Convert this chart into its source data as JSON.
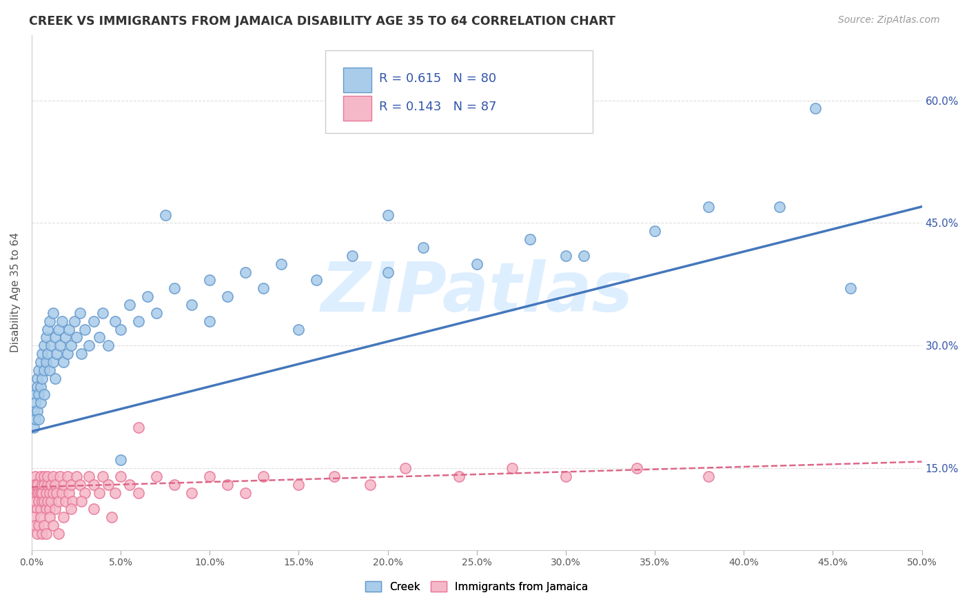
{
  "title": "CREEK VS IMMIGRANTS FROM JAMAICA DISABILITY AGE 35 TO 64 CORRELATION CHART",
  "source": "Source: ZipAtlas.com",
  "xlabel_ticks": [
    "0.0%",
    "5.0%",
    "10.0%",
    "15.0%",
    "20.0%",
    "25.0%",
    "30.0%",
    "35.0%",
    "40.0%",
    "45.0%",
    "50.0%"
  ],
  "ylabel_ticks": [
    "15.0%",
    "30.0%",
    "45.0%",
    "60.0%"
  ],
  "ylabel_label": "Disability Age 35 to 64",
  "xlim": [
    0.0,
    0.5
  ],
  "ylim": [
    0.05,
    0.68
  ],
  "yticks": [
    0.15,
    0.3,
    0.45,
    0.6
  ],
  "xticks": [
    0.0,
    0.05,
    0.1,
    0.15,
    0.2,
    0.25,
    0.3,
    0.35,
    0.4,
    0.45,
    0.5
  ],
  "creek_R": 0.615,
  "creek_N": 80,
  "jamaica_R": 0.143,
  "jamaica_N": 87,
  "creek_color": "#A8CCEA",
  "jamaica_color": "#F5B8C8",
  "creek_edge_color": "#6699CC",
  "jamaica_edge_color": "#E87899",
  "creek_line_color": "#4477BB",
  "jamaica_line_color": "#DD6688",
  "watermark_text": "ZIPatlas",
  "watermark_color": "#DDEEFF",
  "background_color": "#FFFFFF",
  "grid_color": "#DDDDDD",
  "title_color": "#333333",
  "source_color": "#999999",
  "legend_color": "#3355AA",
  "creek_scatter_x": [
    0.001,
    0.001,
    0.002,
    0.002,
    0.002,
    0.003,
    0.003,
    0.003,
    0.004,
    0.004,
    0.004,
    0.005,
    0.005,
    0.005,
    0.006,
    0.006,
    0.007,
    0.007,
    0.007,
    0.008,
    0.008,
    0.009,
    0.009,
    0.01,
    0.01,
    0.011,
    0.012,
    0.012,
    0.013,
    0.013,
    0.014,
    0.015,
    0.016,
    0.017,
    0.018,
    0.019,
    0.02,
    0.021,
    0.022,
    0.024,
    0.025,
    0.027,
    0.028,
    0.03,
    0.032,
    0.035,
    0.038,
    0.04,
    0.043,
    0.047,
    0.05,
    0.055,
    0.06,
    0.065,
    0.07,
    0.08,
    0.09,
    0.1,
    0.11,
    0.12,
    0.13,
    0.14,
    0.16,
    0.18,
    0.2,
    0.22,
    0.25,
    0.28,
    0.31,
    0.35,
    0.38,
    0.42,
    0.46,
    0.05,
    0.075,
    0.1,
    0.15,
    0.2,
    0.3,
    0.44
  ],
  "creek_scatter_y": [
    0.22,
    0.2,
    0.24,
    0.21,
    0.23,
    0.26,
    0.22,
    0.25,
    0.27,
    0.24,
    0.21,
    0.28,
    0.25,
    0.23,
    0.29,
    0.26,
    0.3,
    0.27,
    0.24,
    0.31,
    0.28,
    0.32,
    0.29,
    0.33,
    0.27,
    0.3,
    0.34,
    0.28,
    0.31,
    0.26,
    0.29,
    0.32,
    0.3,
    0.33,
    0.28,
    0.31,
    0.29,
    0.32,
    0.3,
    0.33,
    0.31,
    0.34,
    0.29,
    0.32,
    0.3,
    0.33,
    0.31,
    0.34,
    0.3,
    0.33,
    0.32,
    0.35,
    0.33,
    0.36,
    0.34,
    0.37,
    0.35,
    0.38,
    0.36,
    0.39,
    0.37,
    0.4,
    0.38,
    0.41,
    0.39,
    0.42,
    0.4,
    0.43,
    0.41,
    0.44,
    0.47,
    0.47,
    0.37,
    0.16,
    0.46,
    0.33,
    0.32,
    0.46,
    0.41,
    0.59
  ],
  "jamaica_scatter_x": [
    0.001,
    0.001,
    0.002,
    0.002,
    0.002,
    0.003,
    0.003,
    0.003,
    0.004,
    0.004,
    0.005,
    0.005,
    0.005,
    0.006,
    0.006,
    0.006,
    0.007,
    0.007,
    0.007,
    0.008,
    0.008,
    0.009,
    0.009,
    0.009,
    0.01,
    0.01,
    0.011,
    0.011,
    0.012,
    0.012,
    0.013,
    0.013,
    0.014,
    0.015,
    0.016,
    0.017,
    0.018,
    0.019,
    0.02,
    0.021,
    0.022,
    0.023,
    0.025,
    0.027,
    0.03,
    0.032,
    0.035,
    0.038,
    0.04,
    0.043,
    0.047,
    0.05,
    0.055,
    0.06,
    0.07,
    0.08,
    0.09,
    0.1,
    0.11,
    0.12,
    0.13,
    0.15,
    0.17,
    0.19,
    0.21,
    0.24,
    0.27,
    0.3,
    0.34,
    0.38,
    0.001,
    0.002,
    0.003,
    0.004,
    0.005,
    0.006,
    0.007,
    0.008,
    0.01,
    0.012,
    0.015,
    0.018,
    0.022,
    0.028,
    0.035,
    0.045,
    0.06
  ],
  "jamaica_scatter_y": [
    0.13,
    0.12,
    0.14,
    0.11,
    0.13,
    0.12,
    0.1,
    0.13,
    0.12,
    0.11,
    0.14,
    0.12,
    0.1,
    0.13,
    0.11,
    0.12,
    0.14,
    0.11,
    0.13,
    0.12,
    0.1,
    0.13,
    0.11,
    0.14,
    0.12,
    0.1,
    0.13,
    0.11,
    0.14,
    0.12,
    0.1,
    0.13,
    0.12,
    0.11,
    0.14,
    0.12,
    0.13,
    0.11,
    0.14,
    0.12,
    0.13,
    0.11,
    0.14,
    0.13,
    0.12,
    0.14,
    0.13,
    0.12,
    0.14,
    0.13,
    0.12,
    0.14,
    0.13,
    0.12,
    0.14,
    0.13,
    0.12,
    0.14,
    0.13,
    0.12,
    0.14,
    0.13,
    0.14,
    0.13,
    0.15,
    0.14,
    0.15,
    0.14,
    0.15,
    0.14,
    0.09,
    0.08,
    0.07,
    0.08,
    0.09,
    0.07,
    0.08,
    0.07,
    0.09,
    0.08,
    0.07,
    0.09,
    0.1,
    0.11,
    0.1,
    0.09,
    0.2
  ],
  "creek_line_x": [
    0.0,
    0.5
  ],
  "creek_line_y": [
    0.195,
    0.47
  ],
  "jamaica_line_x": [
    0.0,
    0.5
  ],
  "jamaica_line_y": [
    0.127,
    0.158
  ]
}
